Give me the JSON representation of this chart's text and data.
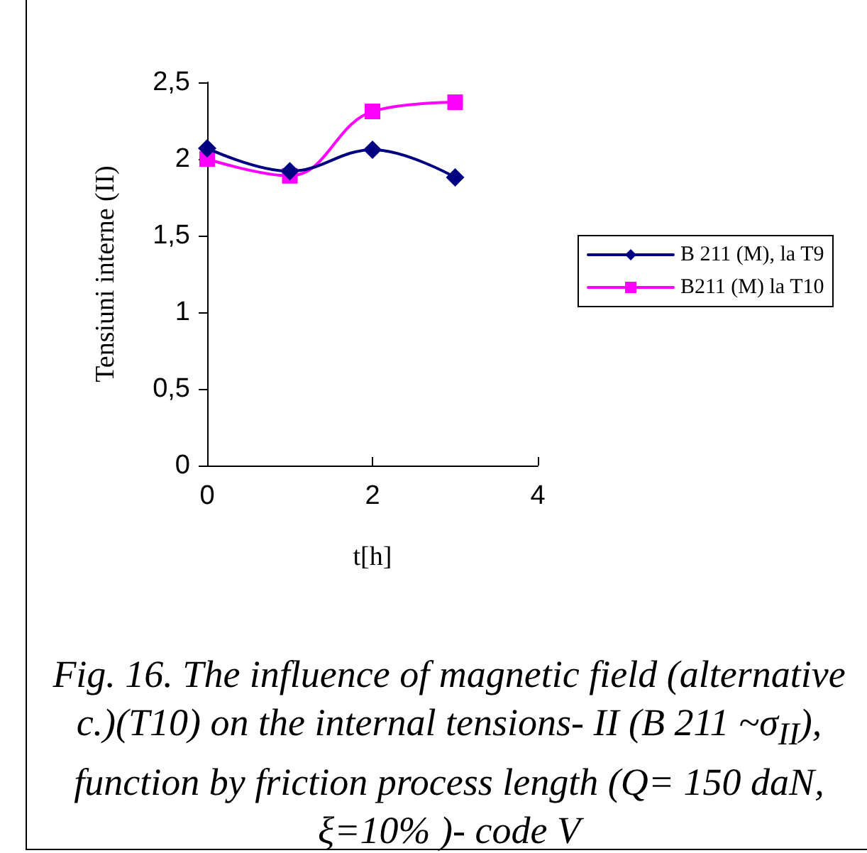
{
  "chart_data": {
    "type": "line",
    "xlabel": "t[h]",
    "ylabel": "Tensiuni interne (II)",
    "x": [
      0,
      1,
      2,
      3
    ],
    "series": [
      {
        "name": "B 211 (M), la T9",
        "color": "#000080",
        "marker": "diamond",
        "values": [
          2.07,
          1.92,
          2.06,
          1.88
        ]
      },
      {
        "name": "B211 (M) la T10",
        "color": "#ff00ff",
        "marker": "square",
        "values": [
          2.0,
          1.89,
          2.31,
          2.37
        ]
      }
    ],
    "xlim": [
      0,
      4
    ],
    "xticks": [
      0,
      2,
      4
    ],
    "ylim": [
      0,
      2.5
    ],
    "yticks": [
      0,
      {
        "value": 0.5,
        "label": "0,5"
      },
      1,
      {
        "value": 1.5,
        "label": "1,5"
      },
      2,
      {
        "value": 2.5,
        "label": "2,5"
      }
    ],
    "grid": false,
    "legend": "right",
    "line_style": "solid",
    "annotations": [
      "Fig. 16. The influence of magnetic field (alternative c.)(T10) on the internal tensions- II (B 211 ~σ$_{II}$), function by friction process length (Q= 150 daN, ξ=10% )- code V"
    ]
  }
}
